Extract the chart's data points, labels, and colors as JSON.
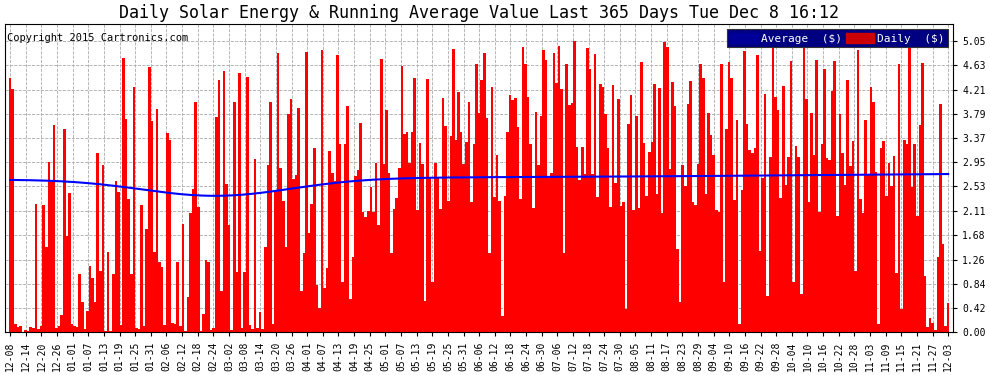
{
  "title": "Daily Solar Energy & Running Average Value Last 365 Days Tue Dec 8 16:12",
  "copyright": "Copyright 2015 Cartronics.com",
  "bar_color": "#ff0000",
  "avg_line_color": "#0000ff",
  "background_color": "#ffffff",
  "plot_bg_color": "#ffffff",
  "grid_color": "#aaaaaa",
  "yticks": [
    0.0,
    0.42,
    0.84,
    1.26,
    1.68,
    2.11,
    2.53,
    2.95,
    3.37,
    3.79,
    4.21,
    4.63,
    5.05
  ],
  "ylim": [
    0.0,
    5.35
  ],
  "legend_avg_label": "Average  ($)",
  "legend_daily_label": "Daily  ($)",
  "legend_avg_bg": "#000099",
  "legend_daily_bg": "#cc0000",
  "xtick_labels": [
    "12-08",
    "12-14",
    "12-20",
    "12-26",
    "01-01",
    "01-07",
    "01-13",
    "01-19",
    "01-25",
    "01-31",
    "02-06",
    "02-12",
    "02-18",
    "02-24",
    "03-02",
    "03-08",
    "03-14",
    "03-20",
    "03-26",
    "04-01",
    "04-07",
    "04-13",
    "04-19",
    "04-25",
    "05-01",
    "05-07",
    "05-13",
    "05-19",
    "05-25",
    "05-31",
    "06-06",
    "06-12",
    "06-18",
    "06-24",
    "06-30",
    "07-06",
    "07-12",
    "07-18",
    "07-24",
    "07-30",
    "08-05",
    "08-11",
    "08-17",
    "08-23",
    "08-29",
    "09-04",
    "09-10",
    "09-16",
    "09-22",
    "09-28",
    "10-04",
    "10-10",
    "10-16",
    "10-22",
    "10-28",
    "11-03",
    "11-09",
    "11-15",
    "11-21",
    "11-27",
    "12-03"
  ],
  "num_days": 365,
  "title_fontsize": 12,
  "copyright_fontsize": 7.5,
  "tick_fontsize": 7,
  "legend_fontsize": 8
}
